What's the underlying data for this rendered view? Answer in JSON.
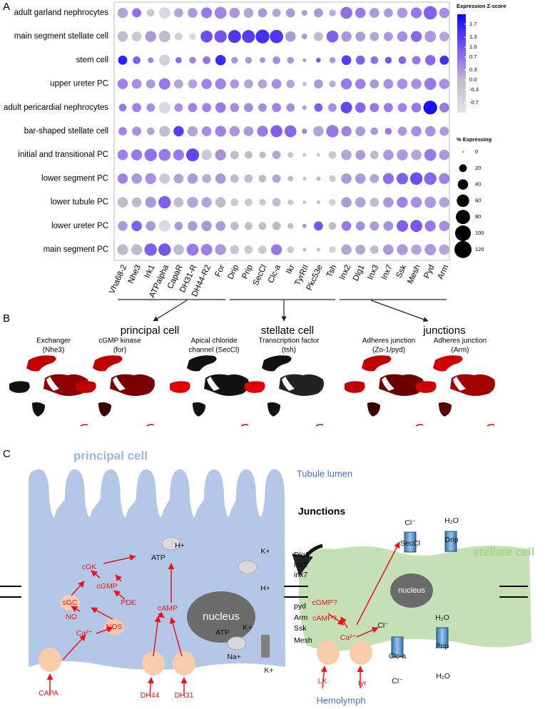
{
  "panels": {
    "a": "A",
    "b": "B",
    "c": "C"
  },
  "chart_data": {
    "type": "dot",
    "categories": [
      "Vha68-2",
      "Nhe3",
      "Irk1",
      "ATPalpha",
      "CapaR",
      "DH31-R",
      "DH44-R2",
      "For",
      "Drip",
      "Prip",
      "SecCl",
      "Clc-a",
      "Ikr",
      "TyrRII",
      "Pkc53e",
      "Tsh",
      "Inx2",
      "Dlg1",
      "Inx3",
      "Inx7",
      "Ssk",
      "Mesh",
      "Pyd",
      "Arm"
    ],
    "groups": [
      "adult garland nephrocytes",
      "main segment stellate cell",
      "stem cell",
      "upper ureter PC",
      "adult pericardial nephrocytes",
      "bar-shaped stellate cell",
      "initial and transitional PC",
      "lower segment  PC",
      "lower tubule PC",
      "lower ureter PC",
      "main segment PC"
    ],
    "values": [
      [
        0.2,
        0.7,
        -0.3,
        -0.7,
        0.2,
        0.3,
        0.6,
        0.5,
        0.3,
        0.2,
        0.3,
        0.2,
        0.3,
        0.3,
        0.3,
        0.1,
        0.7,
        0.6,
        0.3,
        0.3,
        0.3,
        0.6,
        0.9,
        0.4
      ],
      [
        0,
        -0.3,
        0.3,
        0,
        -0.5,
        -0.7,
        1.1,
        1,
        1.4,
        1.3,
        1.5,
        1.4,
        0.3,
        0.3,
        0,
        0.9,
        0.3,
        0.3,
        0.2,
        0.3,
        0.4,
        0.8,
        0.3,
        0.2
      ],
      [
        1.7,
        0.9,
        0.5,
        -0.5,
        0.8,
        0.5,
        0.7,
        1.6,
        0.3,
        0.3,
        0.3,
        0.4,
        0.3,
        0.3,
        1,
        0.3,
        1.3,
        0.9,
        0.7,
        1,
        0.8,
        0.6,
        0.8,
        1.5
      ],
      [
        0.5,
        0.4,
        0.3,
        0.6,
        0.2,
        0.2,
        0.5,
        0.5,
        0.3,
        0.2,
        0.2,
        0.4,
        0.2,
        0,
        0.3,
        0.1,
        0.6,
        0.5,
        0.3,
        0.4,
        0.4,
        0.4,
        0.6,
        0.4
      ],
      [
        0.6,
        0.5,
        0.4,
        -0.7,
        0.4,
        0.5,
        0.5,
        0.6,
        0.4,
        0.4,
        0.4,
        0.5,
        0.4,
        0.3,
        0.9,
        0.4,
        1.2,
        0.8,
        0.6,
        0.6,
        0.5,
        0.6,
        1.9,
        0.6
      ],
      [
        0.5,
        0.4,
        0.2,
        -0.1,
        1.3,
        0.2,
        0.4,
        0.5,
        0.3,
        0.3,
        0.6,
        0.9,
        0.8,
        0.5,
        0.2,
        0.6,
        0.5,
        0.3,
        0.3,
        0.6,
        0.3,
        0.4,
        0.4,
        0.3
      ],
      [
        0.5,
        0.6,
        0.7,
        0.6,
        0.6,
        1.2,
        -0.3,
        0.4,
        0,
        0,
        0,
        0.2,
        -0.3,
        0,
        0,
        -0.3,
        0.2,
        0.3,
        0,
        0.3,
        0.3,
        0.2,
        0.6,
        0.3
      ],
      [
        0.5,
        0.3,
        0.4,
        -0.3,
        0.2,
        0.3,
        0.1,
        0.3,
        0,
        0,
        0,
        0.2,
        0,
        0,
        0,
        -0.3,
        0.3,
        0.3,
        0.2,
        0.7,
        0.9,
        1.1,
        0.8,
        0.5
      ],
      [
        0,
        0,
        0.3,
        0.9,
        0,
        0.2,
        0.2,
        0,
        -0.3,
        -0.3,
        -0.3,
        0,
        -0.3,
        0,
        0,
        -0.5,
        0.3,
        0.2,
        0,
        0.3,
        0.5,
        0.4,
        0.3,
        0.2
      ],
      [
        0.3,
        0.9,
        0.3,
        -0.7,
        0.3,
        0.3,
        0.3,
        0.3,
        0,
        0,
        0,
        0,
        0,
        0.3,
        1,
        0,
        0.6,
        0.4,
        0.3,
        0.4,
        0.9,
        1,
        0.6,
        0.4
      ],
      [
        0,
        0,
        0.9,
        1,
        0,
        0.6,
        0.5,
        0.3,
        -0.3,
        -0.3,
        -0.3,
        0.6,
        -0.3,
        0,
        0,
        -0.5,
        0.2,
        0.2,
        0,
        0.3,
        0.3,
        0.2,
        0.3,
        0.2
      ]
    ],
    "sizes": [
      [
        40,
        30,
        20,
        50,
        30,
        35,
        45,
        55,
        40,
        35,
        30,
        25,
        30,
        10,
        30,
        15,
        55,
        40,
        35,
        30,
        40,
        45,
        70,
        40
      ],
      [
        40,
        35,
        45,
        50,
        20,
        15,
        55,
        60,
        65,
        65,
        75,
        70,
        40,
        10,
        30,
        55,
        40,
        35,
        30,
        30,
        40,
        45,
        50,
        35
      ],
      [
        30,
        20,
        10,
        45,
        12,
        15,
        20,
        40,
        15,
        15,
        10,
        20,
        15,
        3,
        6,
        12,
        35,
        30,
        20,
        15,
        20,
        25,
        40,
        30
      ],
      [
        40,
        35,
        30,
        50,
        30,
        30,
        40,
        45,
        30,
        30,
        30,
        35,
        25,
        5,
        30,
        15,
        45,
        40,
        30,
        35,
        40,
        40,
        55,
        40
      ],
      [
        20,
        30,
        25,
        50,
        25,
        30,
        30,
        40,
        30,
        30,
        25,
        30,
        25,
        5,
        25,
        25,
        50,
        40,
        30,
        30,
        30,
        35,
        75,
        35
      ],
      [
        25,
        30,
        20,
        45,
        40,
        40,
        35,
        45,
        40,
        35,
        45,
        55,
        55,
        8,
        40,
        60,
        40,
        35,
        20,
        15,
        30,
        40,
        40,
        30
      ],
      [
        40,
        45,
        60,
        55,
        45,
        65,
        40,
        45,
        25,
        20,
        15,
        25,
        10,
        2,
        2,
        20,
        40,
        35,
        25,
        40,
        45,
        40,
        55,
        40
      ],
      [
        40,
        40,
        45,
        40,
        35,
        40,
        30,
        40,
        25,
        25,
        20,
        25,
        10,
        3,
        5,
        15,
        40,
        40,
        30,
        45,
        50,
        60,
        60,
        45
      ],
      [
        40,
        35,
        45,
        60,
        35,
        45,
        40,
        40,
        20,
        20,
        15,
        25,
        10,
        2,
        3,
        15,
        40,
        40,
        30,
        40,
        45,
        45,
        50,
        40
      ],
      [
        35,
        40,
        35,
        50,
        25,
        35,
        40,
        35,
        25,
        20,
        20,
        25,
        10,
        5,
        30,
        20,
        35,
        30,
        30,
        35,
        50,
        55,
        45,
        40
      ],
      [
        45,
        45,
        60,
        60,
        40,
        55,
        50,
        45,
        30,
        25,
        25,
        45,
        15,
        3,
        3,
        15,
        40,
        35,
        25,
        40,
        45,
        40,
        50,
        40
      ]
    ],
    "color_legend_title": "Expression Z-score",
    "zlim": [
      -1,
      2
    ],
    "zticks": [
      1.7,
      1.3,
      {
        "value": 1,
        "label": "1.0"
      },
      0.7,
      0.3,
      {
        "value": 0,
        "label": "0.0"
      },
      -0.3,
      -0.7
    ],
    "size_legend_title": "% Expressing",
    "size_ticks": [
      0,
      20,
      40,
      60,
      80,
      100,
      120
    ]
  },
  "panel_b": {
    "groups": [
      "principal cell",
      "stellate cell",
      "junctions"
    ],
    "plots": [
      {
        "title": "Exchanger",
        "subtitle": "(Nhe3)"
      },
      {
        "title": "cGMP kinase",
        "subtitle": "(for)"
      },
      {
        "title": "Apical chloride",
        "subtitle": "channel (SecCl)"
      },
      {
        "title": "Transcription factor",
        "subtitle": "(tsh)"
      },
      {
        "title": "Adheres junction",
        "subtitle": "(Zo-1/pyd)"
      },
      {
        "title": "Adheres junction",
        "subtitle": "(Arm)"
      }
    ]
  },
  "panel_c": {
    "principal_title": "principal cell",
    "lumen": "Tubule lumen",
    "junctions_title": "Junctions",
    "stellate_title": "stellate cell",
    "hemolymph": "Hemolymph",
    "principal_labels": [
      "H+",
      "ATP",
      "cGK",
      "cGMP",
      "sGC",
      "PDE",
      "NO",
      "NOS",
      "Ca²⁺",
      "cAMP",
      "nucleus",
      "K+",
      "H+",
      "ATP",
      "K+",
      "Na+",
      "K+",
      "CAPA",
      "DH44",
      "DH31"
    ],
    "junction_proteins": [
      "Dlg1",
      "inx2",
      "inx7",
      "pyd",
      "Arm",
      "Ssk",
      "Mesh"
    ],
    "stellate_labels": [
      "Cl⁻",
      "SecCl",
      "H₂O",
      "Drip",
      "cGMP?",
      "cAMP?",
      "nucleus",
      "Ca²⁺",
      "Cl⁻",
      "H₂O",
      "Prip",
      "Clc-a",
      "Cl⁻",
      "H₂O",
      "LK",
      "tyr"
    ]
  }
}
